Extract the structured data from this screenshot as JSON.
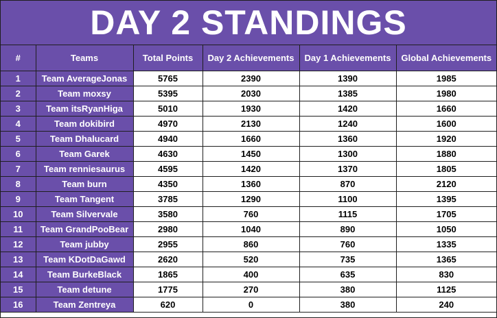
{
  "title": "DAY 2 STANDINGS",
  "colors": {
    "header_bg": "#6a4faa",
    "header_text": "#ffffff",
    "cell_bg": "#ffffff",
    "border": "#1e1e1e"
  },
  "columns": [
    "#",
    "Teams",
    "Total Points",
    "Day 2 Achievements",
    "Day 1 Achievements",
    "Global Achievements"
  ],
  "rows": [
    {
      "rank": "1",
      "team": "Team AverageJonas",
      "total": "5765",
      "day2": "2390",
      "day1": "1390",
      "global": "1985"
    },
    {
      "rank": "2",
      "team": "Team moxsy",
      "total": "5395",
      "day2": "2030",
      "day1": "1385",
      "global": "1980"
    },
    {
      "rank": "3",
      "team": "Team itsRyanHiga",
      "total": "5010",
      "day2": "1930",
      "day1": "1420",
      "global": "1660"
    },
    {
      "rank": "4",
      "team": "Team dokibird",
      "total": "4970",
      "day2": "2130",
      "day1": "1240",
      "global": "1600"
    },
    {
      "rank": "5",
      "team": "Team Dhalucard",
      "total": "4940",
      "day2": "1660",
      "day1": "1360",
      "global": "1920"
    },
    {
      "rank": "6",
      "team": "Team Garek",
      "total": "4630",
      "day2": "1450",
      "day1": "1300",
      "global": "1880"
    },
    {
      "rank": "7",
      "team": "Team renniesaurus",
      "total": "4595",
      "day2": "1420",
      "day1": "1370",
      "global": "1805"
    },
    {
      "rank": "8",
      "team": "Team burn",
      "total": "4350",
      "day2": "1360",
      "day1": "870",
      "global": "2120"
    },
    {
      "rank": "9",
      "team": "Team Tangent",
      "total": "3785",
      "day2": "1290",
      "day1": "1100",
      "global": "1395"
    },
    {
      "rank": "10",
      "team": "Team Silvervale",
      "total": "3580",
      "day2": "760",
      "day1": "1115",
      "global": "1705"
    },
    {
      "rank": "11",
      "team": "Team GrandPooBear",
      "total": "2980",
      "day2": "1040",
      "day1": "890",
      "global": "1050"
    },
    {
      "rank": "12",
      "team": "Team jubby",
      "total": "2955",
      "day2": "860",
      "day1": "760",
      "global": "1335"
    },
    {
      "rank": "13",
      "team": "Team KDotDaGawd",
      "total": "2620",
      "day2": "520",
      "day1": "735",
      "global": "1365"
    },
    {
      "rank": "14",
      "team": "Team BurkeBlack",
      "total": "1865",
      "day2": "400",
      "day1": "635",
      "global": "830"
    },
    {
      "rank": "15",
      "team": "Team detune",
      "total": "1775",
      "day2": "270",
      "day1": "380",
      "global": "1125"
    },
    {
      "rank": "16",
      "team": "Team Zentreya",
      "total": "620",
      "day2": "0",
      "day1": "380",
      "global": "240"
    }
  ]
}
